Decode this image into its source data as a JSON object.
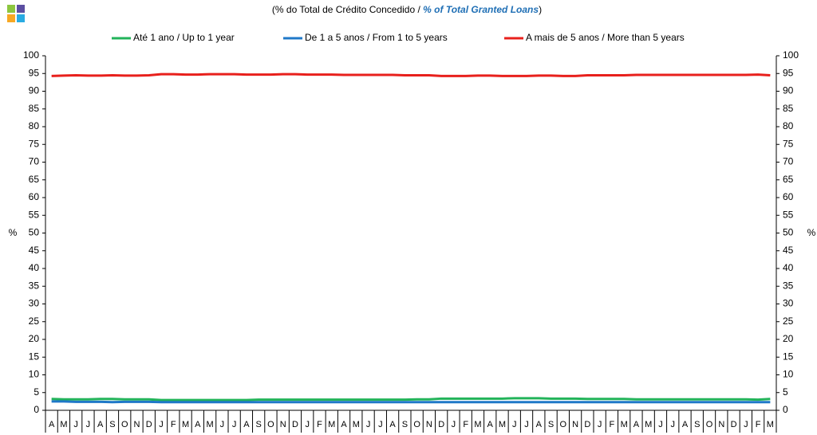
{
  "chart_data": {
    "type": "line",
    "title": [
      "(% do Total de Crédito Concedido / ",
      "% of Total Granted Loans",
      ")"
    ],
    "y_label": "%",
    "y2_label": "%",
    "categories": [
      "A",
      "M",
      "J",
      "J",
      "A",
      "S",
      "O",
      "N",
      "D",
      "J",
      "F",
      "M",
      "A",
      "M",
      "J",
      "J",
      "A",
      "S",
      "O",
      "N",
      "D",
      "J",
      "F",
      "M",
      "A",
      "M",
      "J",
      "J",
      "A",
      "S",
      "O",
      "N",
      "D",
      "J",
      "F",
      "M",
      "A",
      "M",
      "J",
      "J",
      "A",
      "S",
      "O",
      "N",
      "D",
      "J",
      "F",
      "M",
      "A",
      "M",
      "J",
      "J",
      "A",
      "S",
      "O",
      "N",
      "D",
      "J",
      "F",
      "M"
    ],
    "series": [
      {
        "name": "Até 1 ano / Up to 1 year",
        "color": "#22b35a",
        "values": [
          3.2,
          3.1,
          3.1,
          3.1,
          3.2,
          3.2,
          3.1,
          3.1,
          3.1,
          2.9,
          2.9,
          2.9,
          2.9,
          2.9,
          2.9,
          2.9,
          2.9,
          3.0,
          3.0,
          3.0,
          3.0,
          3.0,
          3.0,
          3.0,
          3.0,
          3.0,
          3.0,
          3.0,
          3.0,
          3.0,
          3.1,
          3.1,
          3.3,
          3.3,
          3.3,
          3.3,
          3.3,
          3.3,
          3.4,
          3.4,
          3.4,
          3.3,
          3.3,
          3.3,
          3.2,
          3.2,
          3.2,
          3.2,
          3.1,
          3.1,
          3.1,
          3.1,
          3.1,
          3.1,
          3.1,
          3.1,
          3.1,
          3.1,
          3.0,
          3.2
        ]
      },
      {
        "name": "De 1 a 5 anos / From 1 to 5 years",
        "color": "#1f78c8",
        "values": [
          2.5,
          2.5,
          2.4,
          2.4,
          2.4,
          2.3,
          2.4,
          2.4,
          2.4,
          2.3,
          2.3,
          2.3,
          2.3,
          2.3,
          2.3,
          2.3,
          2.3,
          2.3,
          2.3,
          2.3,
          2.3,
          2.3,
          2.3,
          2.3,
          2.3,
          2.3,
          2.3,
          2.3,
          2.3,
          2.3,
          2.3,
          2.3,
          2.3,
          2.3,
          2.3,
          2.3,
          2.3,
          2.3,
          2.3,
          2.3,
          2.3,
          2.3,
          2.3,
          2.3,
          2.3,
          2.3,
          2.3,
          2.3,
          2.3,
          2.3,
          2.3,
          2.3,
          2.3,
          2.3,
          2.3,
          2.3,
          2.3,
          2.3,
          2.3,
          2.3
        ]
      },
      {
        "name": "A mais de 5 anos / More than 5 years",
        "color": "#e8201c",
        "values": [
          94.3,
          94.4,
          94.5,
          94.4,
          94.4,
          94.5,
          94.4,
          94.4,
          94.5,
          94.8,
          94.8,
          94.7,
          94.7,
          94.8,
          94.8,
          94.8,
          94.7,
          94.7,
          94.7,
          94.8,
          94.8,
          94.7,
          94.7,
          94.7,
          94.6,
          94.6,
          94.6,
          94.6,
          94.6,
          94.5,
          94.5,
          94.5,
          94.3,
          94.3,
          94.3,
          94.4,
          94.4,
          94.3,
          94.3,
          94.3,
          94.4,
          94.4,
          94.3,
          94.3,
          94.5,
          94.5,
          94.5,
          94.5,
          94.6,
          94.6,
          94.6,
          94.6,
          94.6,
          94.6,
          94.6,
          94.6,
          94.6,
          94.6,
          94.7,
          94.5
        ]
      }
    ],
    "ylim": [
      0,
      100
    ],
    "yticks": [
      0,
      5,
      10,
      15,
      20,
      25,
      30,
      35,
      40,
      45,
      50,
      55,
      60,
      65,
      70,
      75,
      80,
      85,
      90,
      95,
      100
    ],
    "y2lim": [
      0,
      100
    ],
    "y2ticks": [
      0,
      5,
      10,
      15,
      20,
      25,
      30,
      35,
      40,
      45,
      50,
      55,
      60,
      65,
      70,
      75,
      80,
      85,
      90,
      95,
      100
    ]
  }
}
